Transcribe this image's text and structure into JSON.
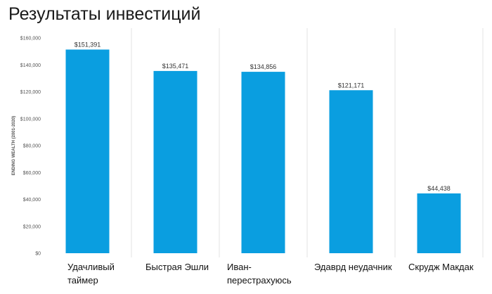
{
  "page": {
    "title": "Результаты инвестиций"
  },
  "chart_data": {
    "type": "bar",
    "title": "Результаты инвестиций",
    "ylabel": "ENDING WEALTH (2001-2020)",
    "xlabel": "",
    "categories": [
      [
        "Удачливый",
        "таймер"
      ],
      [
        "Быстрая Эшли"
      ],
      [
        "Иван-",
        "перестрахуюсь"
      ],
      [
        "Эдаврд неудачник"
      ],
      [
        "Скрудж Макдак"
      ]
    ],
    "values": [
      151391,
      135471,
      134856,
      121171,
      44438
    ],
    "data_labels": [
      "$151,391",
      "$135,471",
      "$134,856",
      "$121,171",
      "$44,438"
    ],
    "yticks": [
      "$0",
      "$20,000",
      "$40,000",
      "$60,000",
      "$80,000",
      "$100,000",
      "$120,000",
      "$140,000",
      "$160,000"
    ],
    "ylim": [
      0,
      160000
    ],
    "bar_color": "#0a9ee0",
    "divider_color": "#e3e3e3",
    "grid": false
  }
}
